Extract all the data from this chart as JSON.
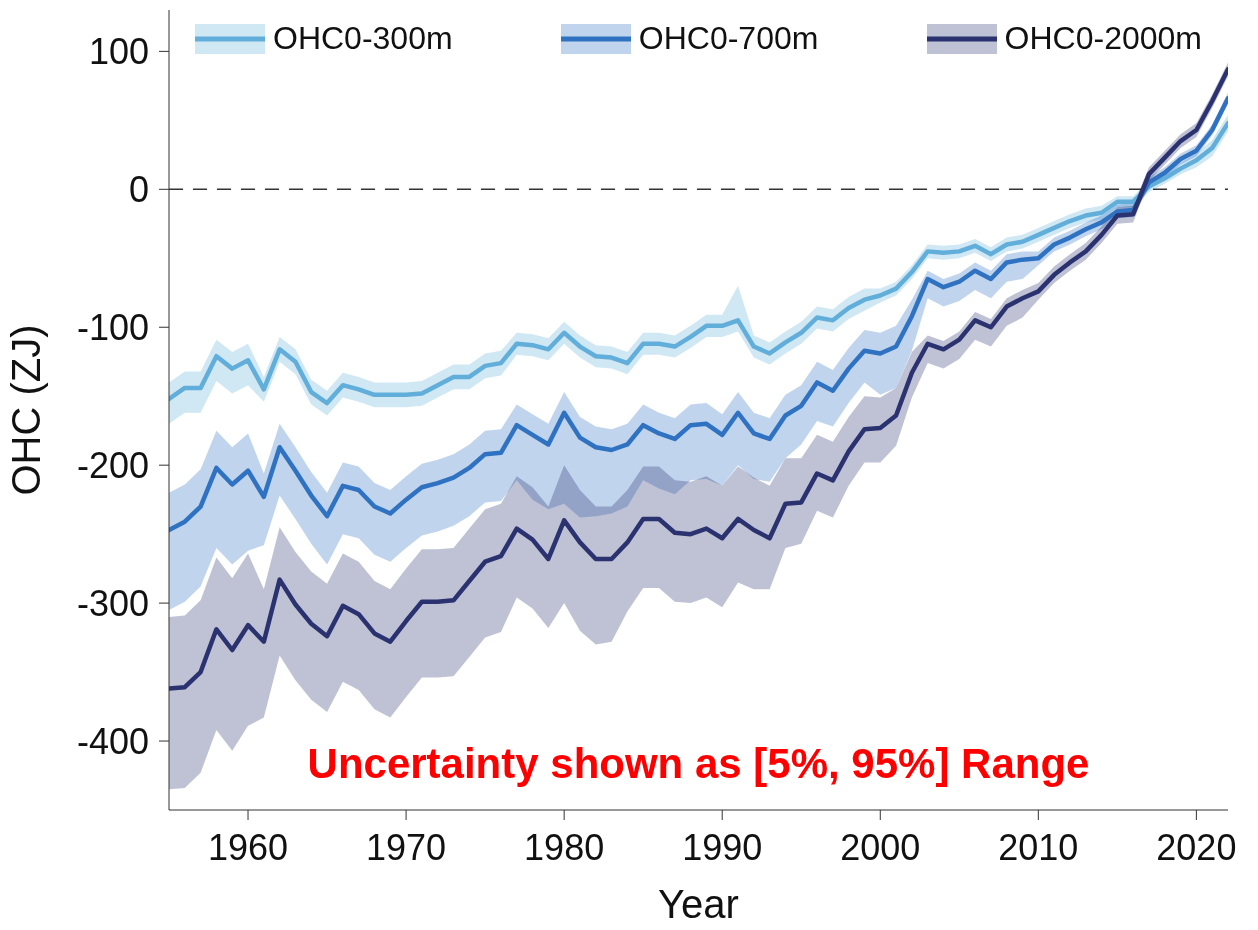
{
  "chart_data": {
    "type": "line",
    "xlabel": "Year",
    "ylabel": "OHC (ZJ)",
    "x": [
      1955,
      1956,
      1957,
      1958,
      1959,
      1960,
      1961,
      1962,
      1963,
      1964,
      1965,
      1966,
      1967,
      1968,
      1969,
      1970,
      1971,
      1972,
      1973,
      1974,
      1975,
      1976,
      1977,
      1978,
      1979,
      1980,
      1981,
      1982,
      1983,
      1984,
      1985,
      1986,
      1987,
      1988,
      1989,
      1990,
      1991,
      1992,
      1993,
      1994,
      1995,
      1996,
      1997,
      1998,
      1999,
      2000,
      2001,
      2002,
      2003,
      2004,
      2005,
      2006,
      2007,
      2008,
      2009,
      2010,
      2011,
      2012,
      2013,
      2014,
      2015,
      2016,
      2017,
      2018,
      2019,
      2020,
      2021,
      2022
    ],
    "xlim": [
      1955,
      2022
    ],
    "xticks": [
      1960,
      1970,
      1980,
      1990,
      2000,
      2010,
      2020
    ],
    "ylim": [
      -450,
      130
    ],
    "yticks": [
      -400,
      -300,
      -200,
      -100,
      0,
      100
    ],
    "legend": "top",
    "line_style": "solid",
    "ref_lines": [
      {
        "axis": "y",
        "value": 0,
        "line_style": "dashed",
        "color": "#333333"
      }
    ],
    "annotations": [
      "Uncertainty shown as [5%, 95%] Range"
    ],
    "series": [
      {
        "name": "OHC0-300m",
        "color": "#62aedb",
        "values": [
          -152,
          -144,
          -144,
          -121,
          -130,
          -124,
          -145,
          -116,
          -125,
          -147,
          -155,
          -142,
          -145,
          -149,
          -149,
          -149,
          -148,
          -142,
          -136,
          -136,
          -128,
          -126,
          -112,
          -113,
          -116,
          -104,
          -114,
          -121,
          -122,
          -126,
          -112,
          -112,
          -114,
          -107,
          -99,
          -99,
          -95,
          -114,
          -119,
          -111,
          -104,
          -93,
          -95,
          -86,
          -80,
          -77,
          -72,
          -60,
          -45,
          -46,
          -45,
          -41,
          -47,
          -40,
          -38,
          -33,
          -28,
          -23,
          -19,
          -17,
          -9,
          -9,
          2,
          8,
          15,
          21,
          30,
          48
        ],
        "upper": [
          -140,
          -132,
          -132,
          -109,
          -118,
          -112,
          -136,
          -107,
          -116,
          -138,
          -146,
          -133,
          -136,
          -140,
          -140,
          -140,
          -139,
          -133,
          -127,
          -127,
          -119,
          -117,
          -104,
          -105,
          -108,
          -96,
          -106,
          -113,
          -114,
          -118,
          -104,
          -104,
          -106,
          -99,
          -91,
          -91,
          -70,
          -106,
          -111,
          -103,
          -96,
          -85,
          -87,
          -78,
          -72,
          -72,
          -67,
          -55,
          -40,
          -41,
          -40,
          -36,
          -42,
          -35,
          -33,
          -28,
          -23,
          -18,
          -14,
          -12,
          -5,
          -5,
          6,
          12,
          19,
          26,
          36,
          54
        ],
        "lower": [
          -170,
          -162,
          -162,
          -139,
          -148,
          -142,
          -154,
          -125,
          -134,
          -156,
          -164,
          -151,
          -154,
          -158,
          -158,
          -158,
          -157,
          -151,
          -145,
          -145,
          -137,
          -135,
          -120,
          -121,
          -124,
          -112,
          -122,
          -129,
          -130,
          -134,
          -120,
          -120,
          -122,
          -115,
          -107,
          -107,
          -103,
          -122,
          -127,
          -119,
          -112,
          -101,
          -103,
          -94,
          -88,
          -82,
          -77,
          -65,
          -50,
          -51,
          -50,
          -46,
          -52,
          -45,
          -43,
          -38,
          -33,
          -28,
          -24,
          -22,
          -13,
          -13,
          -2,
          4,
          11,
          16,
          24,
          42
        ]
      },
      {
        "name": "OHC0-700m",
        "color": "#2f72c2",
        "values": [
          -247,
          -241,
          -230,
          -202,
          -214,
          -204,
          -223,
          -187,
          -204,
          -222,
          -237,
          -215,
          -218,
          -230,
          -235,
          -225,
          -216,
          -213,
          -209,
          -202,
          -192,
          -191,
          -171,
          -178,
          -185,
          -162,
          -180,
          -187,
          -189,
          -185,
          -171,
          -177,
          -181,
          -171,
          -170,
          -178,
          -162,
          -177,
          -181,
          -164,
          -157,
          -140,
          -146,
          -130,
          -117,
          -119,
          -114,
          -92,
          -65,
          -71,
          -67,
          -59,
          -65,
          -53,
          -51,
          -50,
          -40,
          -35,
          -29,
          -24,
          -16,
          -15,
          5,
          12,
          22,
          28,
          43,
          66
        ],
        "upper": [
          -220,
          -214,
          -203,
          -175,
          -187,
          -177,
          -206,
          -170,
          -187,
          -205,
          -220,
          -198,
          -201,
          -213,
          -218,
          -208,
          -199,
          -196,
          -192,
          -185,
          -175,
          -174,
          -156,
          -163,
          -170,
          -147,
          -165,
          -172,
          -174,
          -170,
          -156,
          -162,
          -166,
          -156,
          -155,
          -163,
          -147,
          -162,
          -166,
          -149,
          -142,
          -125,
          -131,
          -115,
          -102,
          -104,
          -99,
          -80,
          -59,
          -65,
          -61,
          -53,
          -59,
          -47,
          -45,
          -45,
          -35,
          -30,
          -24,
          -19,
          -11,
          -10,
          9,
          16,
          26,
          32,
          47,
          70
        ],
        "lower": [
          -305,
          -299,
          -288,
          -260,
          -272,
          -262,
          -258,
          -222,
          -239,
          -257,
          -272,
          -250,
          -253,
          -265,
          -270,
          -260,
          -251,
          -248,
          -244,
          -237,
          -227,
          -226,
          -211,
          -225,
          -232,
          -228,
          -238,
          -237,
          -235,
          -230,
          -211,
          -217,
          -221,
          -211,
          -210,
          -215,
          -200,
          -210,
          -212,
          -195,
          -185,
          -168,
          -172,
          -155,
          -140,
          -149,
          -144,
          -117,
          -79,
          -85,
          -81,
          -73,
          -79,
          -67,
          -65,
          -55,
          -45,
          -40,
          -34,
          -29,
          -21,
          -20,
          1,
          8,
          18,
          24,
          39,
          62
        ]
      },
      {
        "name": "OHC0-2000m",
        "color": "#2b3270",
        "values": [
          -362,
          -361,
          -350,
          -319,
          -334,
          -316,
          -328,
          -283,
          -301,
          -315,
          -324,
          -302,
          -308,
          -322,
          -328,
          -313,
          -299,
          -299,
          -298,
          -284,
          -270,
          -266,
          -246,
          -254,
          -268,
          -240,
          -256,
          -268,
          -268,
          -256,
          -239,
          -239,
          -249,
          -250,
          -246,
          -253,
          -239,
          -247,
          -253,
          -228,
          -227,
          -206,
          -211,
          -190,
          -174,
          -173,
          -164,
          -133,
          -112,
          -116,
          -109,
          -95,
          -100,
          -85,
          -79,
          -74,
          -62,
          -53,
          -45,
          -33,
          -19,
          -18,
          11,
          23,
          35,
          43,
          64,
          87
        ],
        "upper": [
          -310,
          -309,
          -298,
          -267,
          -282,
          -264,
          -290,
          -245,
          -263,
          -277,
          -286,
          -264,
          -270,
          -284,
          -290,
          -275,
          -261,
          -261,
          -260,
          -246,
          -232,
          -228,
          -208,
          -216,
          -230,
          -200,
          -218,
          -230,
          -230,
          -218,
          -201,
          -201,
          -211,
          -212,
          -208,
          -215,
          -201,
          -209,
          -215,
          -195,
          -195,
          -178,
          -183,
          -165,
          -150,
          -151,
          -144,
          -118,
          -106,
          -110,
          -103,
          -89,
          -94,
          -79,
          -73,
          -68,
          -56,
          -47,
          -39,
          -27,
          -13,
          -12,
          16,
          28,
          40,
          48,
          69,
          92
        ],
        "lower": [
          -435,
          -434,
          -423,
          -392,
          -407,
          -389,
          -383,
          -338,
          -356,
          -370,
          -379,
          -357,
          -363,
          -377,
          -383,
          -368,
          -354,
          -354,
          -353,
          -339,
          -325,
          -321,
          -296,
          -304,
          -318,
          -300,
          -320,
          -330,
          -328,
          -306,
          -289,
          -289,
          -299,
          -300,
          -296,
          -303,
          -285,
          -290,
          -290,
          -260,
          -257,
          -233,
          -238,
          -215,
          -198,
          -198,
          -186,
          -151,
          -126,
          -130,
          -123,
          -109,
          -114,
          -99,
          -93,
          -80,
          -68,
          -59,
          -51,
          -39,
          -25,
          -24,
          6,
          18,
          30,
          38,
          59,
          82
        ]
      }
    ]
  }
}
